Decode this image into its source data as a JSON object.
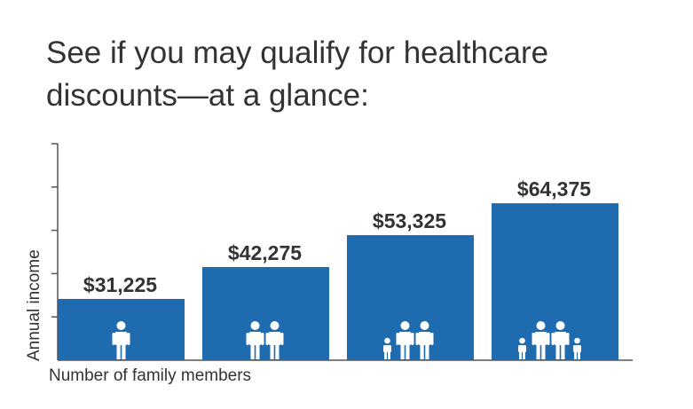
{
  "title": "See if you may qualify for healthcare discounts—at a glance:",
  "colors": {
    "bar": "#1f6bb0",
    "axis": "#555555",
    "text": "#333333",
    "icon": "#ffffff"
  },
  "chart_data": {
    "type": "bar",
    "title": "See if you may qualify for healthcare discounts—at a glance:",
    "xlabel": "Number of family members",
    "ylabel": "Annual income",
    "categories": [
      "1",
      "2",
      "3",
      "4"
    ],
    "category_icons": [
      "person-1-icon",
      "people-2-icon",
      "family-3-icon",
      "family-4-icon"
    ],
    "values": [
      31225,
      42275,
      53325,
      64375
    ],
    "value_labels": [
      "$31,225",
      "$42,275",
      "$53,325",
      "$64,375"
    ],
    "ylim": [
      10000,
      85000
    ],
    "grid": false,
    "legend": "none"
  }
}
